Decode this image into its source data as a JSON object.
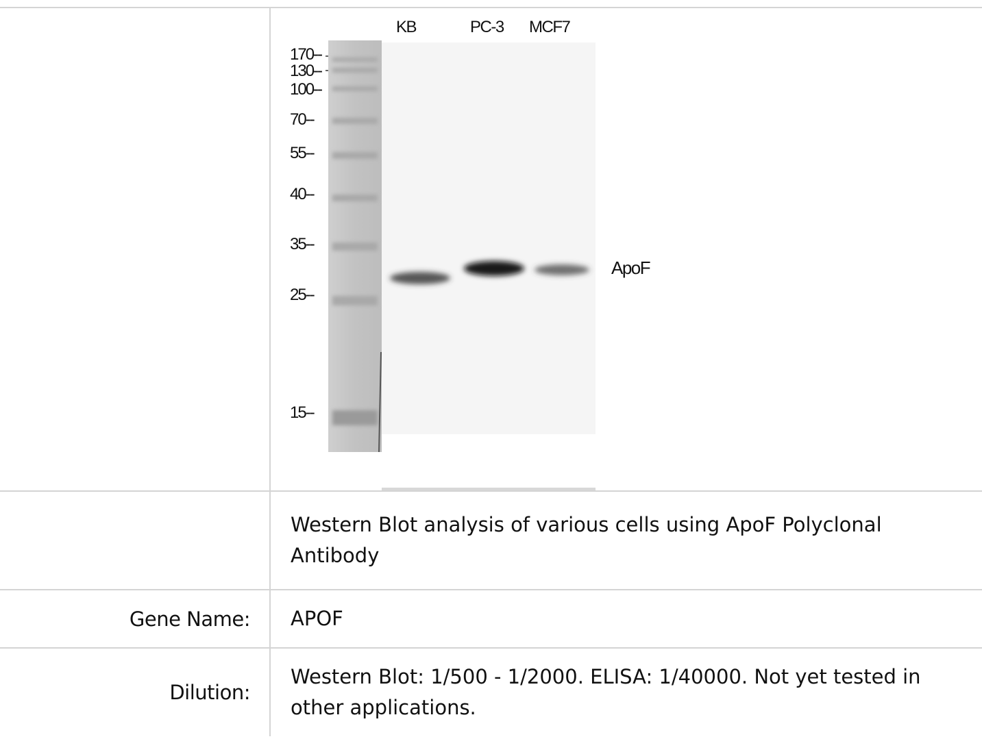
{
  "figure": {
    "lanes": [
      "KB",
      "PC-3",
      "MCF7"
    ],
    "mw_markers": [
      "170--",
      "130--",
      "100--",
      "70--",
      "55--",
      "40--",
      "35--",
      "25--",
      "15--"
    ],
    "band_label": "ApoF",
    "band_intensity": [
      0.75,
      1.0,
      0.6
    ]
  },
  "rows": {
    "caption": {
      "label": "",
      "value": "Western Blot analysis of various cells using ApoF Polyclonal Antibody"
    },
    "gene": {
      "label": "Gene Name:",
      "value": "APOF"
    },
    "dilution": {
      "label": "Dilution:",
      "value": "Western Blot: 1/500 - 1/2000. ELISA: 1/40000. Not yet tested in other applications."
    }
  }
}
